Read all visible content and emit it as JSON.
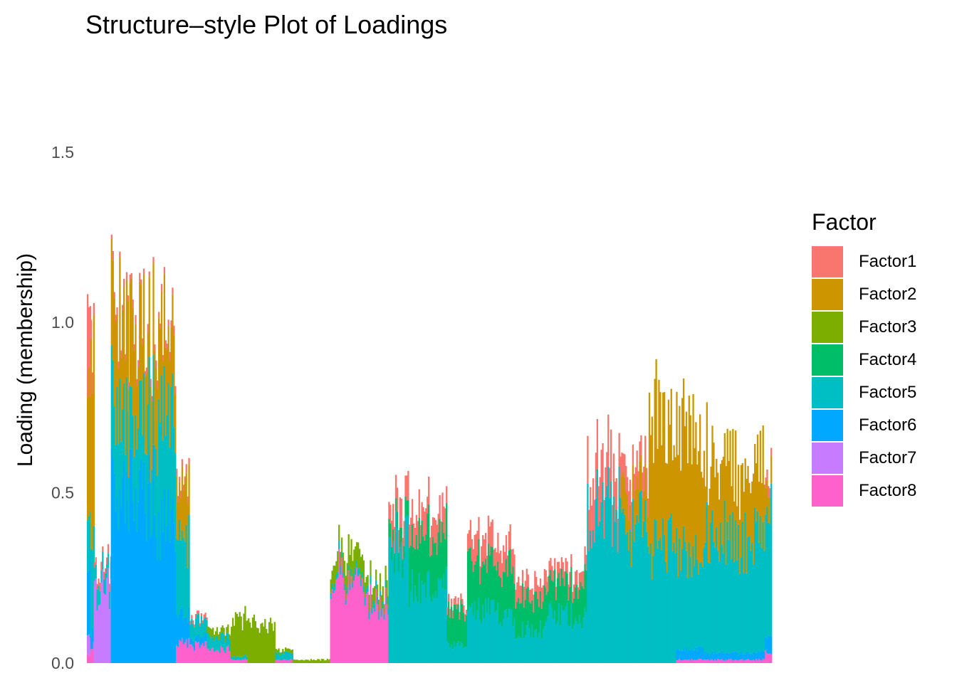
{
  "chart_data": {
    "type": "bar",
    "stacked": true,
    "title": "Structure–style Plot of Loadings",
    "xlabel": "",
    "ylabel": "Loading (membership)",
    "ylim": [
      0,
      1.7
    ],
    "yticks": [
      0.0,
      0.5,
      1.0,
      1.5
    ],
    "ytick_labels": [
      "0.0",
      "0.5",
      "1.0",
      "1.5"
    ],
    "grid": false,
    "legend": {
      "title": "Factor",
      "position": "right"
    },
    "series": [
      {
        "name": "Factor1",
        "color": "#F8766D"
      },
      {
        "name": "Factor2",
        "color": "#CD9600"
      },
      {
        "name": "Factor3",
        "color": "#7CAE00"
      },
      {
        "name": "Factor4",
        "color": "#00BE67"
      },
      {
        "name": "Factor5",
        "color": "#00BFC4"
      },
      {
        "name": "Factor6",
        "color": "#00A9FF"
      },
      {
        "name": "Factor7",
        "color": "#C77CFF"
      },
      {
        "name": "Factor8",
        "color": "#FF61CC"
      }
    ],
    "groups": [
      {
        "start": 0,
        "end": 5,
        "loadings": [
          0.25,
          0.35,
          0.0,
          0.0,
          0.15,
          0.25,
          0.05,
          0.02
        ]
      },
      {
        "start": 5,
        "end": 10,
        "loadings": [
          0.05,
          0.55,
          0.0,
          0.0,
          0.3,
          0.05,
          0.0,
          0.05
        ]
      },
      {
        "start": 10,
        "end": 35,
        "loadings": [
          0.02,
          0.0,
          0.0,
          0.0,
          0.05,
          0.0,
          0.22,
          0.0
        ]
      },
      {
        "start": 35,
        "end": 60,
        "loadings": [
          0.02,
          0.3,
          0.0,
          0.0,
          0.25,
          0.5,
          0.0,
          0.0
        ]
      },
      {
        "start": 60,
        "end": 100,
        "loadings": [
          0.02,
          0.25,
          0.0,
          0.0,
          0.22,
          0.5,
          0.0,
          0.0
        ]
      },
      {
        "start": 100,
        "end": 130,
        "loadings": [
          0.02,
          0.22,
          0.0,
          0.0,
          0.33,
          0.4,
          0.0,
          0.0
        ]
      },
      {
        "start": 130,
        "end": 150,
        "loadings": [
          0.02,
          0.15,
          0.0,
          0.0,
          0.22,
          0.08,
          0.0,
          0.06
        ]
      },
      {
        "start": 150,
        "end": 175,
        "loadings": [
          0.01,
          0.0,
          0.0,
          0.0,
          0.05,
          0.02,
          0.0,
          0.05
        ]
      },
      {
        "start": 175,
        "end": 210,
        "loadings": [
          0.0,
          0.0,
          0.02,
          0.0,
          0.04,
          0.0,
          0.0,
          0.04
        ]
      },
      {
        "start": 210,
        "end": 235,
        "loadings": [
          0.0,
          0.0,
          0.11,
          0.0,
          0.01,
          0.0,
          0.0,
          0.01
        ]
      },
      {
        "start": 235,
        "end": 275,
        "loadings": [
          0.0,
          0.0,
          0.11,
          0.0,
          0.0,
          0.0,
          0.0,
          0.0
        ]
      },
      {
        "start": 275,
        "end": 300,
        "loadings": [
          0.0,
          0.0,
          0.01,
          0.0,
          0.02,
          0.0,
          0.0,
          0.01
        ]
      },
      {
        "start": 300,
        "end": 355,
        "loadings": [
          0.0,
          0.0,
          0.01,
          0.0,
          0.0,
          0.0,
          0.0,
          0.0
        ]
      },
      {
        "start": 355,
        "end": 375,
        "loadings": [
          0.0,
          0.0,
          0.05,
          0.0,
          0.02,
          0.0,
          0.0,
          0.26
        ]
      },
      {
        "start": 375,
        "end": 405,
        "loadings": [
          0.0,
          0.0,
          0.07,
          0.0,
          0.02,
          0.0,
          0.0,
          0.22
        ]
      },
      {
        "start": 405,
        "end": 440,
        "loadings": [
          0.0,
          0.0,
          0.04,
          0.0,
          0.02,
          0.0,
          0.0,
          0.18
        ]
      },
      {
        "start": 440,
        "end": 470,
        "loadings": [
          0.07,
          0.0,
          0.0,
          0.05,
          0.35,
          0.0,
          0.0,
          0.0
        ]
      },
      {
        "start": 470,
        "end": 525,
        "loadings": [
          0.07,
          0.0,
          0.0,
          0.15,
          0.22,
          0.0,
          0.0,
          0.0
        ]
      },
      {
        "start": 525,
        "end": 555,
        "loadings": [
          0.02,
          0.0,
          0.0,
          0.1,
          0.05,
          0.0,
          0.0,
          0.0
        ]
      },
      {
        "start": 555,
        "end": 625,
        "loadings": [
          0.07,
          0.0,
          0.0,
          0.14,
          0.15,
          0.0,
          0.0,
          0.0
        ]
      },
      {
        "start": 625,
        "end": 670,
        "loadings": [
          0.05,
          0.0,
          0.0,
          0.1,
          0.1,
          0.0,
          0.0,
          0.0
        ]
      },
      {
        "start": 670,
        "end": 730,
        "loadings": [
          0.04,
          0.0,
          0.0,
          0.1,
          0.14,
          0.0,
          0.0,
          0.0
        ]
      },
      {
        "start": 730,
        "end": 780,
        "loadings": [
          0.12,
          0.0,
          0.0,
          0.0,
          0.45,
          0.0,
          0.0,
          0.0
        ]
      },
      {
        "start": 780,
        "end": 820,
        "loadings": [
          0.07,
          0.1,
          0.0,
          0.0,
          0.4,
          0.0,
          0.0,
          0.0
        ]
      },
      {
        "start": 820,
        "end": 860,
        "loadings": [
          0.0,
          0.38,
          0.0,
          0.0,
          0.35,
          0.0,
          0.0,
          0.0
        ]
      },
      {
        "start": 860,
        "end": 900,
        "loadings": [
          0.0,
          0.35,
          0.0,
          0.0,
          0.28,
          0.03,
          0.0,
          0.01
        ]
      },
      {
        "start": 900,
        "end": 940,
        "loadings": [
          0.0,
          0.23,
          0.0,
          0.0,
          0.35,
          0.02,
          0.0,
          0.01
        ]
      },
      {
        "start": 940,
        "end": 990,
        "loadings": [
          0.0,
          0.22,
          0.0,
          0.0,
          0.33,
          0.02,
          0.0,
          0.01
        ]
      },
      {
        "start": 990,
        "end": 1000,
        "loadings": [
          0.03,
          0.1,
          0.0,
          0.0,
          0.35,
          0.05,
          0.0,
          0.03
        ]
      }
    ]
  }
}
